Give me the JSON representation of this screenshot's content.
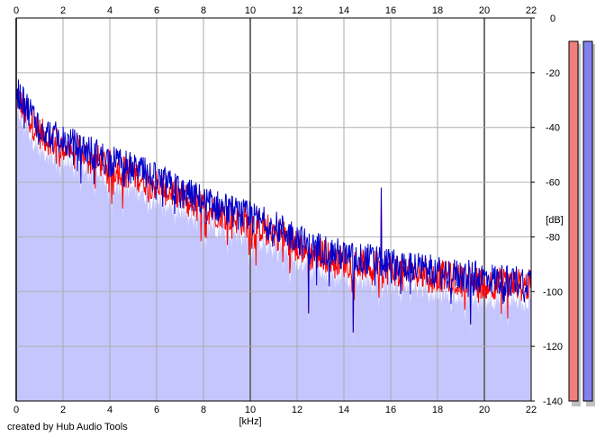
{
  "chart_data": {
    "type": "line",
    "xlabel": "[kHz]",
    "ylabel": "[dB]",
    "xlim": [
      0,
      22
    ],
    "ylim": [
      -140,
      0
    ],
    "x_ticks": [
      0,
      2,
      4,
      6,
      8,
      10,
      12,
      14,
      16,
      18,
      20,
      22
    ],
    "x_tick_labels": [
      "0",
      "2",
      "4",
      "6",
      "8",
      "10",
      "12",
      "14",
      "16",
      "18",
      "20",
      "22"
    ],
    "y_ticks": [
      0,
      -20,
      -40,
      -60,
      -80,
      -100,
      -120,
      -140
    ],
    "y_tick_labels": [
      "0",
      "-20",
      "-40",
      "-60",
      "-80",
      "-100",
      "-120",
      "-140"
    ],
    "grid": true,
    "series": [
      {
        "color": "#ff0000",
        "x": [
          0,
          0.5,
          1,
          1.5,
          2,
          3,
          4,
          5,
          6,
          7,
          8,
          9,
          10,
          11,
          12,
          12.5,
          13,
          14,
          14.5,
          15,
          15.5,
          16,
          17,
          18,
          19,
          20,
          21,
          22
        ],
        "y": [
          -28,
          -36,
          -42,
          -45,
          -47,
          -50,
          -54,
          -57,
          -61,
          -65,
          -69,
          -72,
          -75,
          -78,
          -82,
          -87,
          -86,
          -89,
          -90,
          -90,
          -91,
          -92,
          -93,
          -94,
          -96,
          -97,
          -97,
          -98
        ]
      },
      {
        "color": "#0000cc",
        "x": [
          0,
          0.5,
          1,
          1.5,
          2,
          3,
          4,
          5,
          6,
          7,
          8,
          9,
          10,
          11,
          12,
          12.5,
          13,
          14,
          14.5,
          15,
          15.5,
          16,
          17,
          18,
          19,
          20,
          21,
          22
        ],
        "y": [
          -26,
          -33,
          -39,
          -43,
          -45,
          -48,
          -52,
          -55,
          -59,
          -63,
          -67,
          -70,
          -73,
          -76,
          -80,
          -84,
          -84,
          -87,
          -88,
          -88,
          -89,
          -90,
          -91,
          -93,
          -94,
          -95,
          -96,
          -96
        ]
      }
    ],
    "peaks": [
      {
        "x": 15.6,
        "y": -62
      },
      {
        "x": 12.5,
        "y": -108
      },
      {
        "x": 14.4,
        "y": -115
      },
      {
        "x": 19.4,
        "y": -112
      }
    ],
    "fill_series_color": "#c6c6ff",
    "level_meters": [
      {
        "color": "#f08080",
        "level_db": 0
      },
      {
        "color": "#8080f0",
        "level_db": 0
      }
    ]
  },
  "credit": "created by Hub Audio Tools"
}
